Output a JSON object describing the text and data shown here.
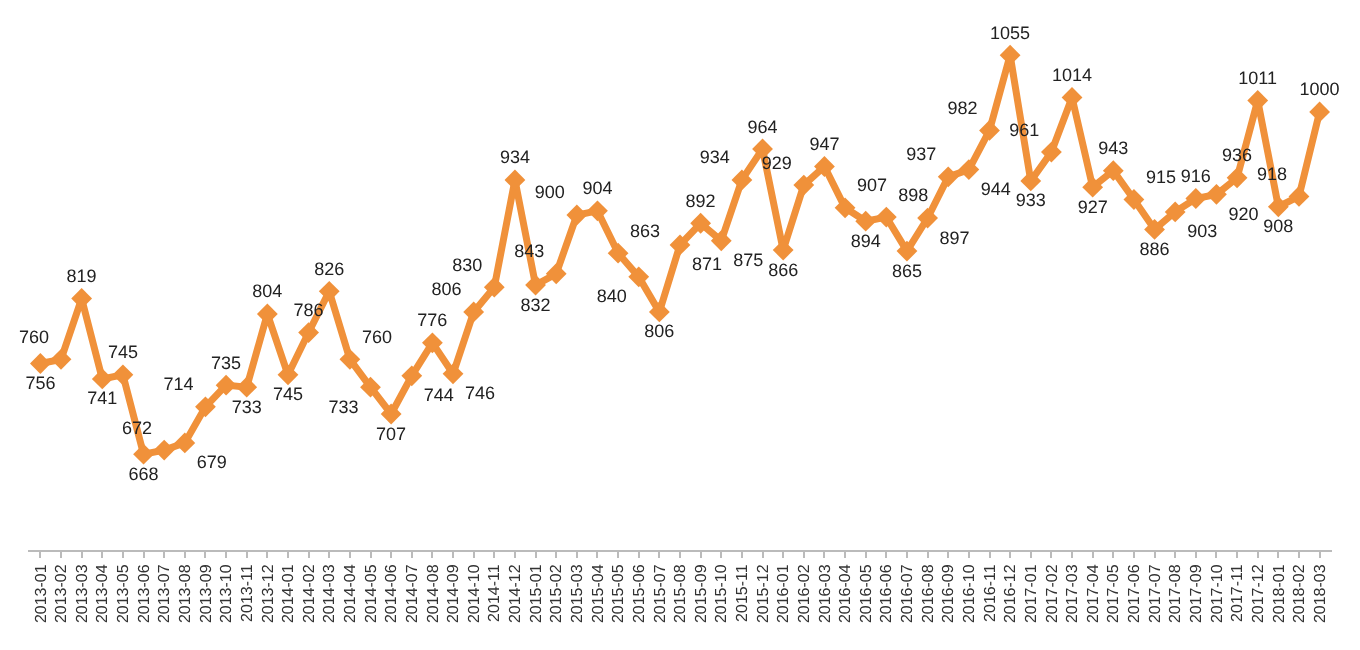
{
  "chart_data": {
    "type": "line",
    "categories": [
      "2013-01",
      "2013-02",
      "2013-03",
      "2013-04",
      "2013-05",
      "2013-06",
      "2013-07",
      "2013-08",
      "2013-09",
      "2013-10",
      "2013-11",
      "2013-12",
      "2014-01",
      "2014-02",
      "2014-03",
      "2014-04",
      "2014-05",
      "2014-06",
      "2014-07",
      "2014-08",
      "2014-09",
      "2014-10",
      "2014-11",
      "2014-12",
      "2015-01",
      "2015-02",
      "2015-03",
      "2015-04",
      "2015-05",
      "2015-06",
      "2015-07",
      "2015-08",
      "2015-09",
      "2015-10",
      "2015-11",
      "2015-12",
      "2016-01",
      "2016-02",
      "2016-03",
      "2016-04",
      "2016-05",
      "2016-06",
      "2016-07",
      "2016-08",
      "2016-09",
      "2016-10",
      "2016-11",
      "2016-12",
      "2017-01",
      "2017-02",
      "2017-03",
      "2017-04",
      "2017-05",
      "2017-06",
      "2017-07",
      "2017-08",
      "2017-09",
      "2017-10",
      "2017-11",
      "2017-12",
      "2018-01",
      "2018-02",
      "2018-03"
    ],
    "series": [
      {
        "color": "#f0913a",
        "values": [
          756,
          760,
          819,
          741,
          745,
          668,
          672,
          679,
          714,
          735,
          733,
          804,
          745,
          786,
          826,
          760,
          733,
          707,
          744,
          776,
          746,
          806,
          830,
          934,
          832,
          843,
          900,
          904,
          863,
          840,
          806,
          871,
          892,
          875,
          934,
          964,
          866,
          929,
          947,
          907,
          894,
          898,
          865,
          897,
          937,
          944,
          982,
          1055,
          933,
          961,
          1014,
          927,
          943,
          915,
          886,
          903,
          916,
          920,
          936,
          1011,
          908,
          918,
          1000
        ]
      }
    ],
    "data_labels": true,
    "marker": "diamond",
    "line_style": "solid",
    "legend": false,
    "grid": false,
    "tick_labels": "x"
  }
}
